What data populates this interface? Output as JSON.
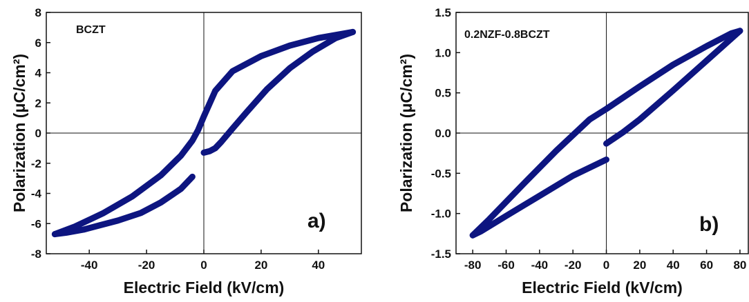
{
  "chart_data": [
    {
      "type": "line",
      "sample_label": "BCZT",
      "panel_label": "a)",
      "xlabel": "Electric Field (kV/cm)",
      "ylabel": "Polarization (μC/cm²)",
      "xlim": [
        -55,
        55
      ],
      "ylim": [
        -8,
        8
      ],
      "xticks": [
        -40,
        -20,
        0,
        20,
        40
      ],
      "yticks": [
        -8,
        -6,
        -4,
        -2,
        0,
        2,
        4,
        6,
        8
      ],
      "line_color": "#0d1580",
      "series": [
        {
          "x": [
            -4,
            -8,
            -15,
            -22,
            -30,
            -36,
            -42,
            -48,
            -52
          ],
          "y": [
            -2.9,
            -3.7,
            -4.6,
            -5.3,
            -5.8,
            -6.1,
            -6.4,
            -6.6,
            -6.7
          ]
        },
        {
          "x": [
            -52,
            -45,
            -35,
            -25,
            -15,
            -8,
            -4,
            -2,
            0,
            4,
            10,
            20,
            30,
            40,
            52
          ],
          "y": [
            -6.7,
            -6.2,
            -5.3,
            -4.2,
            -2.8,
            -1.5,
            -0.5,
            0.2,
            1.1,
            2.8,
            4.1,
            5.1,
            5.8,
            6.3,
            6.7
          ]
        },
        {
          "x": [
            52,
            46,
            38,
            30,
            22,
            15,
            10,
            6,
            4,
            2,
            0
          ],
          "y": [
            6.7,
            6.3,
            5.4,
            4.3,
            2.9,
            1.4,
            0.3,
            -0.6,
            -1.0,
            -1.2,
            -1.3
          ]
        }
      ]
    },
    {
      "type": "line",
      "sample_label": "0.2NZF-0.8BCZT",
      "panel_label": "b)",
      "xlabel": "Electric Field (kV/cm)",
      "ylabel": "Polarization (μC/cm²)",
      "xlim": [
        -90,
        85
      ],
      "ylim": [
        -1.5,
        1.5
      ],
      "xticks": [
        -80,
        -60,
        -40,
        -20,
        0,
        20,
        40,
        60,
        80
      ],
      "yticks": [
        -1.5,
        -1.0,
        -0.5,
        0.0,
        0.5,
        1.0,
        1.5
      ],
      "line_color": "#0d1580",
      "series": [
        {
          "x": [
            0,
            -20,
            -40,
            -60,
            -75,
            -80
          ],
          "y": [
            -0.33,
            -0.53,
            -0.78,
            -1.03,
            -1.22,
            -1.27
          ]
        },
        {
          "x": [
            -80,
            -70,
            -50,
            -30,
            -10,
            0,
            20,
            40,
            60,
            75,
            80
          ],
          "y": [
            -1.27,
            -1.07,
            -0.64,
            -0.22,
            0.17,
            0.3,
            0.58,
            0.85,
            1.08,
            1.24,
            1.27
          ]
        },
        {
          "x": [
            80,
            60,
            40,
            20,
            10,
            0
          ],
          "y": [
            1.27,
            0.9,
            0.53,
            0.17,
            0.01,
            -0.13
          ]
        }
      ]
    }
  ]
}
